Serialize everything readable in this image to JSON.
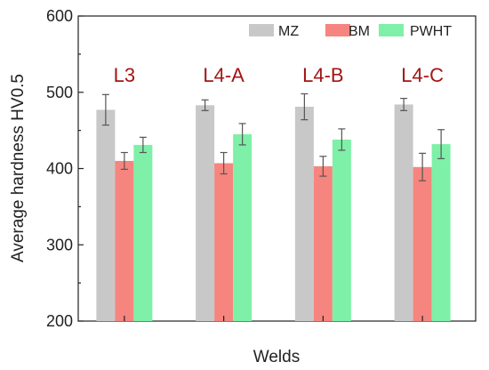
{
  "chart_data": {
    "type": "bar",
    "title": "",
    "xlabel": "Welds",
    "ylabel": "Average hardness HV0.5",
    "ylim": [
      200,
      600
    ],
    "yticks": [
      200,
      300,
      400,
      500,
      600
    ],
    "categories": [
      "L3",
      "L4-A",
      "L4-B",
      "L4-C"
    ],
    "category_label_color": "#a31515",
    "legend_position": "top-right",
    "grid": false,
    "series": [
      {
        "name": "MZ",
        "color": "#c8c8c8",
        "values": [
          477,
          483,
          481,
          484
        ],
        "errors": [
          20,
          7,
          17,
          8
        ]
      },
      {
        "name": "BM",
        "color": "#f5857e",
        "values": [
          410,
          407,
          403,
          402
        ],
        "errors": [
          11,
          14,
          13,
          18
        ]
      },
      {
        "name": "PWHT",
        "color": "#7ef0a8",
        "values": [
          431,
          445,
          438,
          432
        ],
        "errors": [
          10,
          14,
          14,
          19
        ]
      }
    ]
  }
}
